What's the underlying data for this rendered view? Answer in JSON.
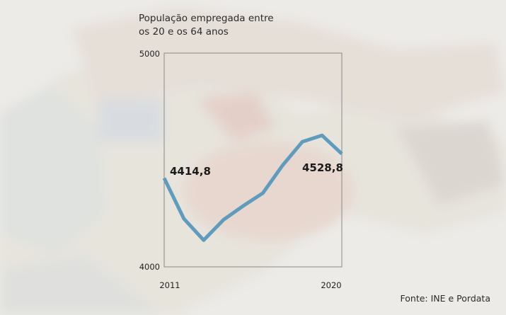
{
  "title_line1": "População empregada entre",
  "title_line2": "os 20 e os 64 anos",
  "source": "Fonte: INE e Pordata",
  "colors": {
    "line": "#5e9bbc",
    "frame": "#8a8a8a",
    "background": "#e9e7e2"
  },
  "chart_data": {
    "type": "line",
    "x": [
      2011,
      2012,
      2013,
      2014,
      2015,
      2016,
      2017,
      2018,
      2019,
      2020
    ],
    "series": [
      {
        "values": [
          4414.8,
          4225,
          4125,
          4220,
          4285,
          4345,
          4475,
          4585,
          4615,
          4528.8
        ]
      }
    ],
    "ylim": [
      4000,
      5000
    ],
    "yticks": [
      "5000",
      "4000"
    ],
    "xtick_labels": [
      "2011",
      "2020"
    ],
    "data_labels": [
      {
        "index": 0,
        "text": "4414,8"
      },
      {
        "index": 9,
        "text": "4528,8"
      }
    ],
    "grid": false
  }
}
